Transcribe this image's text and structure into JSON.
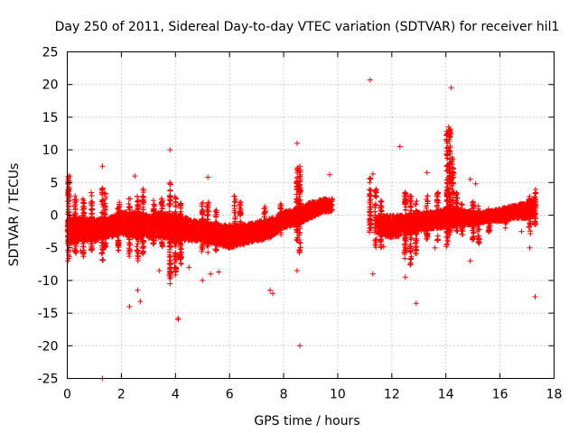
{
  "chart_data": {
    "type": "scatter",
    "title": "Day 250 of 2011, Sidereal Day-to-day VTEC variation (SDTVAR) for receiver hil1",
    "xlabel": "GPS time / hours",
    "ylabel": "SDTVAR / TECUs",
    "xlim": [
      0,
      18
    ],
    "ylim": [
      -25,
      25
    ],
    "xticks": [
      0,
      2,
      4,
      6,
      8,
      10,
      12,
      14,
      16,
      18
    ],
    "yticks": [
      -25,
      -20,
      -15,
      -10,
      -5,
      0,
      5,
      10,
      15,
      20,
      25
    ],
    "grid": true,
    "marker": "+",
    "color": "#ff0000",
    "band_segments": [
      [
        [
          0.0,
          0.0,
          -4.5
        ],
        [
          0.5,
          -0.5,
          -4.0
        ],
        [
          1.0,
          -0.5,
          -4.0
        ],
        [
          1.5,
          -0.5,
          -3.5
        ],
        [
          2.0,
          0.5,
          -3.0
        ],
        [
          2.5,
          0.5,
          -3.5
        ],
        [
          3.0,
          0.0,
          -3.5
        ],
        [
          3.5,
          0.5,
          -3.5
        ],
        [
          4.0,
          0.0,
          -4.0
        ],
        [
          4.5,
          -0.5,
          -4.0
        ],
        [
          5.0,
          -1.0,
          -4.0
        ],
        [
          5.5,
          -1.5,
          -4.5
        ],
        [
          6.0,
          -1.5,
          -5.0
        ],
        [
          6.5,
          -1.5,
          -4.5
        ],
        [
          7.0,
          -1.0,
          -4.0
        ],
        [
          7.5,
          -0.5,
          -3.5
        ],
        [
          8.0,
          0.5,
          -2.0
        ],
        [
          8.5,
          1.0,
          -1.5
        ],
        [
          9.0,
          2.0,
          -0.5
        ],
        [
          9.5,
          2.5,
          0.5
        ],
        [
          9.8,
          2.5,
          0.5
        ]
      ],
      [
        [
          11.5,
          0.0,
          -3.0
        ],
        [
          12.0,
          0.0,
          -3.5
        ],
        [
          12.5,
          0.0,
          -3.0
        ],
        [
          13.0,
          0.5,
          -2.5
        ],
        [
          13.5,
          0.5,
          -2.0
        ],
        [
          14.0,
          1.0,
          -2.0
        ],
        [
          14.5,
          1.0,
          -1.5
        ],
        [
          15.0,
          0.5,
          -1.5
        ],
        [
          15.5,
          0.5,
          -1.0
        ],
        [
          16.0,
          1.0,
          -1.0
        ],
        [
          16.5,
          1.5,
          -0.5
        ],
        [
          17.0,
          2.0,
          -0.5
        ],
        [
          17.3,
          2.5,
          0.0
        ]
      ]
    ],
    "spikes": [
      [
        0.05,
        6.0,
        -7.0
      ],
      [
        0.3,
        3.0,
        -6.0
      ],
      [
        0.6,
        2.5,
        -6.5
      ],
      [
        0.9,
        3.5,
        -5.5
      ],
      [
        1.3,
        4.5,
        -7.0
      ],
      [
        1.4,
        3.5,
        -5.0
      ],
      [
        1.9,
        2.0,
        -5.5
      ],
      [
        2.3,
        2.5,
        -6.5
      ],
      [
        2.6,
        3.0,
        -7.0
      ],
      [
        2.8,
        4.0,
        -6.0
      ],
      [
        3.2,
        2.5,
        -4.5
      ],
      [
        3.5,
        3.0,
        -5.0
      ],
      [
        3.8,
        5.0,
        -10.0
      ],
      [
        4.0,
        3.0,
        -9.5
      ],
      [
        4.2,
        2.0,
        -8.0
      ],
      [
        5.0,
        2.0,
        -6.0
      ],
      [
        5.2,
        2.0,
        -6.0
      ],
      [
        5.5,
        1.0,
        -5.5
      ],
      [
        6.2,
        3.0,
        -4.5
      ],
      [
        6.4,
        2.0,
        -3.5
      ],
      [
        7.3,
        1.5,
        -4.0
      ],
      [
        7.9,
        2.0,
        -3.0
      ],
      [
        8.5,
        7.5,
        -4.0
      ],
      [
        8.6,
        7.0,
        -6.0
      ],
      [
        11.2,
        6.0,
        -3.0
      ],
      [
        11.4,
        4.0,
        -5.0
      ],
      [
        11.6,
        2.5,
        -5.0
      ],
      [
        12.5,
        3.5,
        -7.0
      ],
      [
        12.7,
        3.0,
        -8.0
      ],
      [
        12.9,
        2.5,
        -6.0
      ],
      [
        13.3,
        3.0,
        -4.0
      ],
      [
        13.7,
        3.5,
        -4.0
      ],
      [
        14.05,
        13.0,
        -5.0
      ],
      [
        14.15,
        13.5,
        -3.0
      ],
      [
        14.25,
        9.0,
        -2.0
      ],
      [
        14.4,
        3.5,
        -2.5
      ],
      [
        14.6,
        2.0,
        -3.0
      ],
      [
        15.0,
        2.5,
        -4.5
      ],
      [
        15.2,
        2.0,
        -4.5
      ],
      [
        15.6,
        1.0,
        -3.0
      ],
      [
        16.2,
        1.5,
        -2.0
      ],
      [
        17.1,
        3.0,
        -3.0
      ],
      [
        17.3,
        4.0,
        -2.0
      ]
    ],
    "scatter_points": [
      [
        0.1,
        6.0
      ],
      [
        1.3,
        7.5
      ],
      [
        2.5,
        6.0
      ],
      [
        3.8,
        10.0
      ],
      [
        3.8,
        5.0
      ],
      [
        5.2,
        5.8
      ],
      [
        8.5,
        11.0
      ],
      [
        8.6,
        7.5
      ],
      [
        9.7,
        6.2
      ],
      [
        11.2,
        20.7
      ],
      [
        11.3,
        6.3
      ],
      [
        12.3,
        10.5
      ],
      [
        13.3,
        6.5
      ],
      [
        14.2,
        19.5
      ],
      [
        14.1,
        13.5
      ],
      [
        14.2,
        12.5
      ],
      [
        14.9,
        5.5
      ],
      [
        15.1,
        4.8
      ],
      [
        1.3,
        -25.0
      ],
      [
        2.3,
        -14.0
      ],
      [
        2.7,
        -13.2
      ],
      [
        2.6,
        -11.5
      ],
      [
        3.8,
        -10.5
      ],
      [
        4.1,
        -15.8
      ],
      [
        4.1,
        -16.0
      ],
      [
        5.3,
        -9.0
      ],
      [
        5.0,
        -10.0
      ],
      [
        7.5,
        -11.5
      ],
      [
        7.6,
        -12.0
      ],
      [
        8.6,
        -20.0
      ],
      [
        8.5,
        -8.5
      ],
      [
        12.9,
        -13.5
      ],
      [
        12.5,
        -9.5
      ],
      [
        11.3,
        -9.0
      ],
      [
        14.9,
        -7.0
      ],
      [
        17.3,
        -12.5
      ],
      [
        17.1,
        -5.0
      ],
      [
        0.9,
        -5.0
      ],
      [
        3.4,
        -8.5
      ],
      [
        4.5,
        -8.0
      ],
      [
        5.6,
        -8.7
      ],
      [
        16.8,
        -2.5
      ],
      [
        0.5,
        -5.5
      ],
      [
        9.8,
        2.5
      ],
      [
        13.6,
        -5.0
      ],
      [
        14.3,
        3.5
      ],
      [
        11.7,
        -4.8
      ],
      [
        6.3,
        -2.0
      ]
    ]
  }
}
